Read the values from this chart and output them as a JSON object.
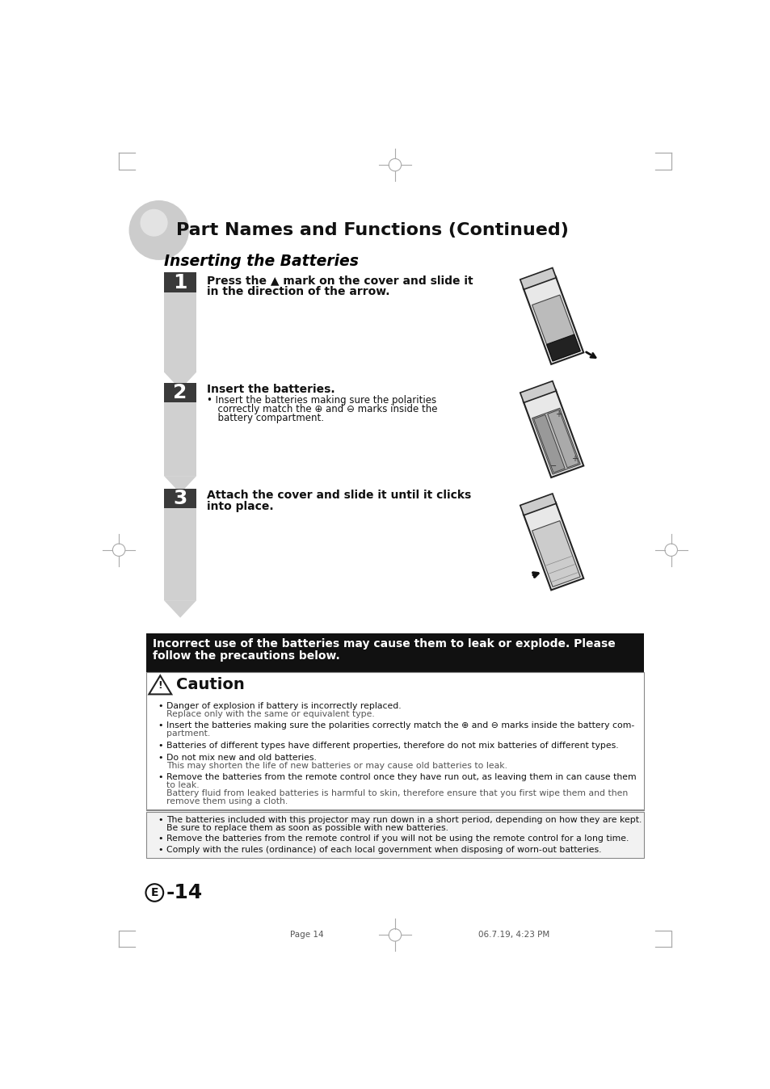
{
  "bg_color": "#ffffff",
  "title": "Part Names and Functions (Continued)",
  "section_title": "Inserting the Batteries",
  "steps": [
    {
      "num": "1",
      "line1": "Press the ▲ mark on the cover and slide it",
      "line2": "in the direction of the arrow.",
      "has_bullet": false
    },
    {
      "num": "2",
      "line1": "Insert the batteries.",
      "line2": "• Insert the batteries making sure the polarities",
      "line3": "  correctly match the ⊕ and ⊖ marks inside the",
      "line4": "  battery compartment.",
      "has_bullet": true
    },
    {
      "num": "3",
      "line1": "Attach the cover and slide it until it clicks",
      "line2": "into place.",
      "has_bullet": false
    }
  ],
  "warning_text_line1": "Incorrect use of the batteries may cause them to leak or explode. Please",
  "warning_text_line2": "follow the precautions below.",
  "caution_title": "Caution",
  "caution_bullets": [
    [
      "Danger of explosion if battery is incorrectly replaced.",
      "Replace only with the same or equivalent type."
    ],
    [
      "Insert the batteries making sure the polarities correctly match the ⊕ and ⊖ marks inside the battery com-",
      "partment."
    ],
    [
      "Batteries of different types have different properties, therefore do not mix batteries of different types."
    ],
    [
      "Do not mix new and old batteries.",
      "This may shorten the life of new batteries or may cause old batteries to leak."
    ],
    [
      "Remove the batteries from the remote control once they have run out, as leaving them in can cause them",
      "to leak.",
      "Battery fluid from leaked batteries is harmful to skin, therefore ensure that you first wipe them and then",
      "remove them using a cloth."
    ]
  ],
  "note_bullets": [
    [
      "The batteries included with this projector may run down in a short period, depending on how they are kept.",
      "Be sure to replace them as soon as possible with new batteries."
    ],
    [
      "Remove the batteries from the remote control if you will not be using the remote control for a long time."
    ],
    [
      "Comply with the rules (ordinance) of each local government when disposing of worn-out batteries."
    ]
  ],
  "page_label_circle": "E",
  "page_label_num": "-14",
  "footer_left": "Page 14",
  "footer_right": "06.7.19, 4:23 PM",
  "step_bar_color": "#d8d8d8",
  "step_num_bg": "#333333",
  "warn_bg": "#1a1a1a",
  "warn_fg": "#ffffff",
  "caution_border": "#888888",
  "note_bg": "#f0f0f0"
}
